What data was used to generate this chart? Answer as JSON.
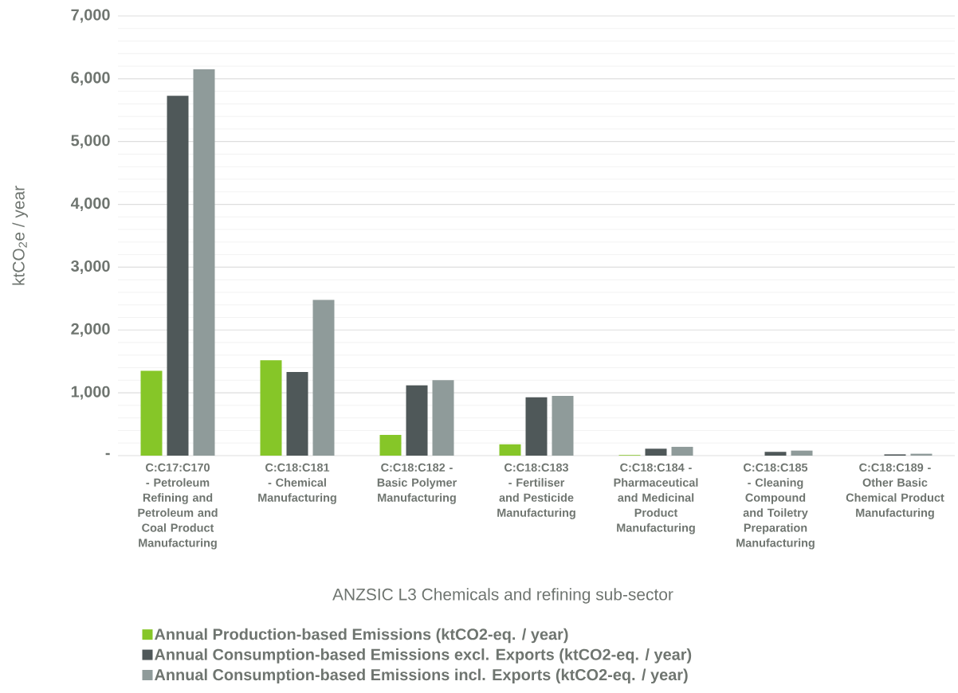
{
  "chart_data": {
    "type": "bar",
    "xlabel": "ANZSIC L3 Chemicals and refining sub-sector",
    "ylabel": "ktCO$_{2}$e / year",
    "categories": [
      "C:C17:C170 - Petroleum Refining and Petroleum and Coal Product Manufacturing",
      "C:C18:C181 - Chemical Manufacturing",
      "C:C18:C182 - Basic Polymer Manufacturing",
      "C:C18:C183 - Fertiliser and Pesticide Manufacturing",
      "C:C18:C184 - Pharmaceutical and Medicinal Product Manufacturing",
      "C:C18:C185 - Cleaning Compound and Toiletry Preparation Manufacturing",
      "C:C18:C189 - Other Basic Chemical Product Manufacturing"
    ],
    "series": [
      {
        "name": "Annual Production-based Emissions (ktCO2-eq. / year)",
        "color": "#86c628",
        "values": [
          1350,
          1520,
          330,
          180,
          10,
          0,
          0
        ]
      },
      {
        "name": "Annual Consumption-based Emissions excl. Exports (ktCO2-eq. / year)",
        "color": "#4f5859",
        "values": [
          5730,
          1330,
          1120,
          930,
          110,
          60,
          20
        ]
      },
      {
        "name": "Annual Consumption-based Emissions incl. Exports (ktCO2-eq. / year)",
        "color": "#8f9b9a",
        "values": [
          6150,
          2480,
          1200,
          950,
          140,
          80,
          30
        ]
      }
    ],
    "ylim": [
      0,
      7000
    ],
    "yticks": [
      {
        "value": 0,
        "label": "-"
      },
      {
        "value": 200,
        "label": null
      },
      {
        "value": 400,
        "label": null
      },
      {
        "value": 600,
        "label": null
      },
      {
        "value": 800,
        "label": null
      },
      {
        "value": 1000,
        "label": "1,000"
      },
      {
        "value": 1200,
        "label": null
      },
      {
        "value": 1400,
        "label": null
      },
      {
        "value": 1600,
        "label": null
      },
      {
        "value": 1800,
        "label": null
      },
      {
        "value": 2000,
        "label": "2,000"
      },
      {
        "value": 2200,
        "label": null
      },
      {
        "value": 2400,
        "label": null
      },
      {
        "value": 2600,
        "label": null
      },
      {
        "value": 2800,
        "label": null
      },
      {
        "value": 3000,
        "label": "3,000"
      },
      {
        "value": 3200,
        "label": null
      },
      {
        "value": 3400,
        "label": null
      },
      {
        "value": 3600,
        "label": null
      },
      {
        "value": 3800,
        "label": null
      },
      {
        "value": 4000,
        "label": "4,000"
      },
      {
        "value": 4200,
        "label": null
      },
      {
        "value": 4400,
        "label": null
      },
      {
        "value": 4600,
        "label": null
      },
      {
        "value": 4800,
        "label": null
      },
      {
        "value": 5000,
        "label": "5,000"
      },
      {
        "value": 5200,
        "label": null
      },
      {
        "value": 5400,
        "label": null
      },
      {
        "value": 5600,
        "label": null
      },
      {
        "value": 5800,
        "label": null
      },
      {
        "value": 6000,
        "label": "6,000"
      },
      {
        "value": 6200,
        "label": null
      },
      {
        "value": 6400,
        "label": null
      },
      {
        "value": 6600,
        "label": null
      },
      {
        "value": 6800,
        "label": null
      },
      {
        "value": 7000,
        "label": "7,000"
      }
    ],
    "grid": "y",
    "legend": "bottom left"
  }
}
